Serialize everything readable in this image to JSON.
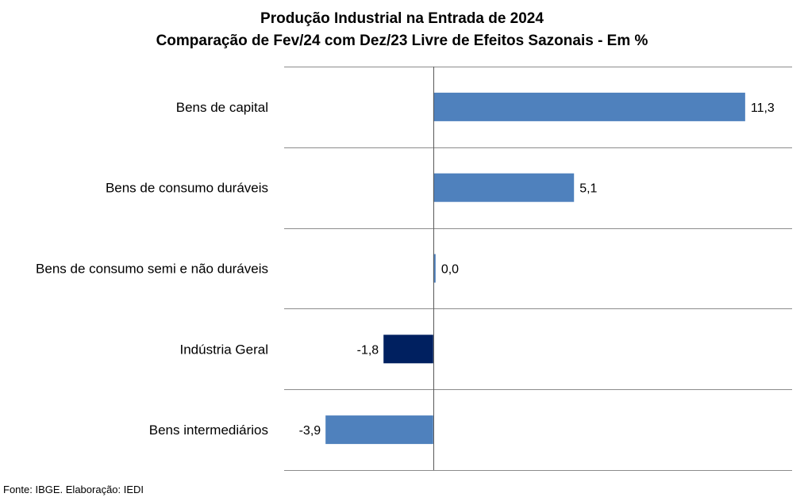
{
  "chart_data": {
    "type": "bar",
    "orientation": "horizontal",
    "title": "Produção Industrial na Entrada de 2024",
    "subtitle": "Comparação de Fev/24 com Dez/23 Livre de Efeitos Sazonais - Em %",
    "categories": [
      "Bens de capital",
      "Bens de consumo duráveis",
      "Bens de consumo semi e não duráveis",
      "Indústria Geral",
      "Bens intermediários"
    ],
    "values": [
      11.3,
      5.1,
      0.0,
      -1.8,
      -3.9
    ],
    "value_labels": [
      "11,3",
      "5,1",
      "0,0",
      "-1,8",
      "-3,9"
    ],
    "bar_colors": [
      "#4f81bd",
      "#4f81bd",
      "#4f81bd",
      "#002060",
      "#4f81bd"
    ],
    "xlim": [
      -5.4,
      13.0
    ],
    "grid": "horizontal category separators",
    "legend": "none"
  },
  "source": "Fonte: IBGE. Elaboração: IEDI"
}
